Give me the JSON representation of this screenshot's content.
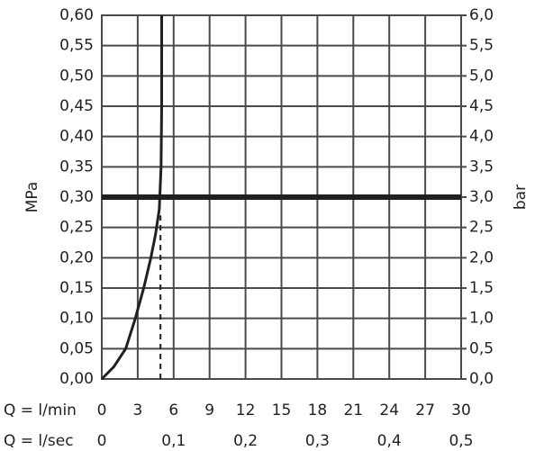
{
  "chart_data": {
    "type": "line",
    "ylabel": "MPa",
    "y2label": "bar",
    "xlabel": "Q = l/min",
    "x2label": "Q = l/sec",
    "xlim": [
      0,
      30
    ],
    "xticks": [
      0,
      3,
      6,
      9,
      12,
      15,
      18,
      21,
      24,
      27,
      30
    ],
    "x2lim": [
      0,
      0.5
    ],
    "x2ticks": [
      0,
      {
        "value": 0.1,
        "label": "0,1"
      },
      {
        "value": 0.2,
        "label": "0,2"
      },
      {
        "value": 0.3,
        "label": "0,3"
      },
      {
        "value": 0.4,
        "label": "0,4"
      },
      {
        "value": 0.5,
        "label": "0,5"
      }
    ],
    "ylim": [
      0,
      0.6
    ],
    "yticks": [
      {
        "value": 0,
        "label": "0,00"
      },
      {
        "value": 0.05,
        "label": "0,05"
      },
      {
        "value": 0.1,
        "label": "0,10"
      },
      {
        "value": 0.15,
        "label": "0,15"
      },
      {
        "value": 0.2,
        "label": "0,20"
      },
      {
        "value": 0.25,
        "label": "0,25"
      },
      {
        "value": 0.3,
        "label": "0,30"
      },
      {
        "value": 0.35,
        "label": "0,35"
      },
      {
        "value": 0.4,
        "label": "0,40"
      },
      {
        "value": 0.45,
        "label": "0,45"
      },
      {
        "value": 0.5,
        "label": "0,50"
      },
      {
        "value": 0.55,
        "label": "0,55"
      },
      {
        "value": 0.6,
        "label": "0,60"
      }
    ],
    "y2lim": [
      0,
      6
    ],
    "y2ticks": [
      {
        "value": 0,
        "label": "0,0"
      },
      {
        "value": 0.5,
        "label": "0,5"
      },
      {
        "value": 1,
        "label": "1,0"
      },
      {
        "value": 1.5,
        "label": "1,5"
      },
      {
        "value": 2,
        "label": "2,0"
      },
      {
        "value": 2.5,
        "label": "2,5"
      },
      {
        "value": 3,
        "label": "3,0"
      },
      {
        "value": 3.5,
        "label": "3,5"
      },
      {
        "value": 4,
        "label": "4,0"
      },
      {
        "value": 4.5,
        "label": "4,5"
      },
      {
        "value": 5,
        "label": "5,0"
      },
      {
        "value": 5.5,
        "label": "5,5"
      },
      {
        "value": 6,
        "label": "6,0"
      }
    ],
    "grid": true,
    "series": [
      {
        "color": "#231f20",
        "width": 3,
        "style": "solid",
        "x": [
          0,
          1,
          2,
          2.8,
          3.5,
          4.1,
          4.5,
          4.8,
          4.95,
          5.0,
          5.0
        ],
        "values": [
          0,
          0.02,
          0.05,
          0.1,
          0.15,
          0.2,
          0.24,
          0.28,
          0.35,
          0.45,
          0.6
        ]
      },
      {
        "color": "#231f20",
        "width": 6,
        "style": "solid",
        "x": [
          0,
          30
        ],
        "values": [
          0.3,
          0.3
        ]
      },
      {
        "color": "#231f20",
        "width": 2,
        "style": "dashed",
        "x": [
          4.9,
          4.9
        ],
        "values": [
          0,
          0.27
        ]
      }
    ]
  }
}
